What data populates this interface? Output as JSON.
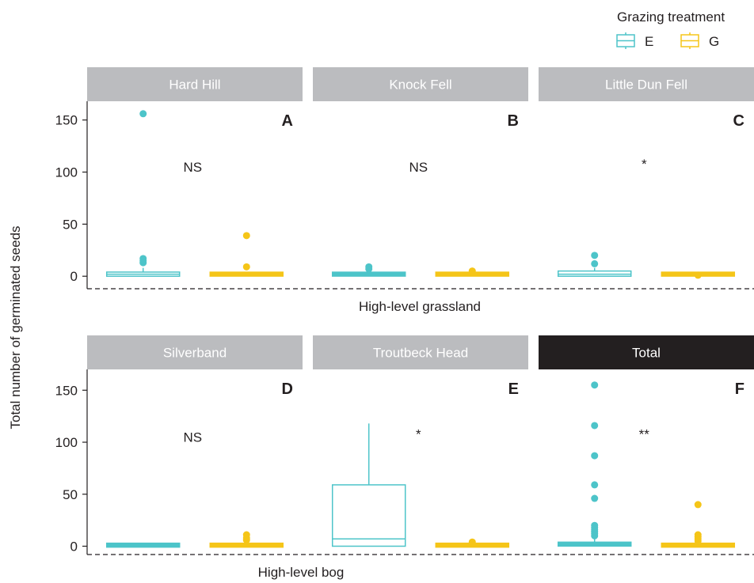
{
  "colors": {
    "E": "#4dc4c9",
    "G": "#f5c518",
    "strip_gray": "#bbbcbf",
    "strip_dark": "#231f20",
    "text": "#231f20"
  },
  "legend": {
    "title": "Grazing treatment",
    "items": [
      {
        "key": "E",
        "label": "E"
      },
      {
        "key": "G",
        "label": "G"
      }
    ]
  },
  "y_axis_title": "Total number of germinated seeds",
  "row_labels": [
    "High-level grassland",
    "High-level bog"
  ],
  "chart_data": [
    {
      "type": "box",
      "strip": "Hard Hill",
      "panel": "A",
      "significance": "NS",
      "row": 0,
      "col": 0,
      "categories": [
        "E",
        "G"
      ],
      "yticks": [
        0,
        50,
        100,
        150
      ],
      "ylim": [
        -12,
        168
      ],
      "boxes": [
        {
          "group": "E",
          "q1": 0,
          "median": 2,
          "q3": 4,
          "whisker_low": 0,
          "whisker_high": 8,
          "outliers": [
            13,
            15,
            17,
            156
          ]
        },
        {
          "group": "G",
          "q1": 1,
          "median": 2,
          "q3": 3,
          "whisker_low": 1,
          "whisker_high": 3,
          "outliers": [
            9,
            39
          ]
        }
      ]
    },
    {
      "type": "box",
      "strip": "Knock Fell",
      "panel": "B",
      "significance": "NS",
      "row": 0,
      "col": 1,
      "categories": [
        "E",
        "G"
      ],
      "yticks": [
        0,
        50,
        100,
        150
      ],
      "ylim": [
        -12,
        168
      ],
      "boxes": [
        {
          "group": "E",
          "q1": 1,
          "median": 2,
          "q3": 3,
          "whisker_low": 1,
          "whisker_high": 3,
          "outliers": [
            7,
            9
          ]
        },
        {
          "group": "G",
          "q1": 1,
          "median": 2,
          "q3": 3,
          "whisker_low": 1,
          "whisker_high": 3,
          "outliers": [
            5
          ]
        }
      ]
    },
    {
      "type": "box",
      "strip": "Little Dun Fell",
      "panel": "C",
      "significance": "*",
      "row": 0,
      "col": 2,
      "categories": [
        "E",
        "G"
      ],
      "yticks": [
        0,
        50,
        100,
        150
      ],
      "ylim": [
        -12,
        168
      ],
      "boxes": [
        {
          "group": "E",
          "q1": 0,
          "median": 2,
          "q3": 5,
          "whisker_low": 0,
          "whisker_high": 8,
          "outliers": [
            12,
            20
          ]
        },
        {
          "group": "G",
          "q1": 1,
          "median": 2,
          "q3": 3,
          "whisker_low": 1,
          "whisker_high": 3,
          "outliers": [
            1
          ]
        }
      ]
    },
    {
      "type": "box",
      "strip": "Silverband",
      "panel": "D",
      "significance": "NS",
      "row": 1,
      "col": 0,
      "categories": [
        "E",
        "G"
      ],
      "yticks": [
        0,
        50,
        100,
        150
      ],
      "ylim": [
        -8,
        170
      ],
      "boxes": [
        {
          "group": "E",
          "q1": 0,
          "median": 1,
          "q3": 2,
          "whisker_low": 0,
          "whisker_high": 2,
          "outliers": []
        },
        {
          "group": "G",
          "q1": 0,
          "median": 1,
          "q3": 2,
          "whisker_low": 0,
          "whisker_high": 2,
          "outliers": [
            6,
            8,
            11
          ]
        }
      ]
    },
    {
      "type": "box",
      "strip": "Troutbeck Head",
      "panel": "E",
      "significance": "*",
      "row": 1,
      "col": 1,
      "categories": [
        "E",
        "G"
      ],
      "yticks": [
        0,
        50,
        100,
        150
      ],
      "ylim": [
        -8,
        170
      ],
      "boxes": [
        {
          "group": "E",
          "q1": 0,
          "median": 7,
          "q3": 59,
          "whisker_low": 0,
          "whisker_high": 118,
          "outliers": []
        },
        {
          "group": "G",
          "q1": 0,
          "median": 1,
          "q3": 2,
          "whisker_low": 0,
          "whisker_high": 2,
          "outliers": [
            4
          ]
        }
      ]
    },
    {
      "type": "box",
      "strip": "Total",
      "panel": "F",
      "significance": "**",
      "row": 1,
      "col": 2,
      "categories": [
        "E",
        "G"
      ],
      "yticks": [
        0,
        50,
        100,
        150
      ],
      "ylim": [
        -8,
        170
      ],
      "boxes": [
        {
          "group": "E",
          "q1": 1,
          "median": 2,
          "q3": 4,
          "whisker_low": 0,
          "whisker_high": 8,
          "outliers": [
            10,
            12,
            14,
            16,
            18,
            20,
            46,
            59,
            87,
            116,
            155
          ]
        },
        {
          "group": "G",
          "q1": 0,
          "median": 1,
          "q3": 2,
          "whisker_low": 0,
          "whisker_high": 2,
          "outliers": [
            5,
            7,
            9,
            11,
            40
          ]
        }
      ]
    }
  ]
}
